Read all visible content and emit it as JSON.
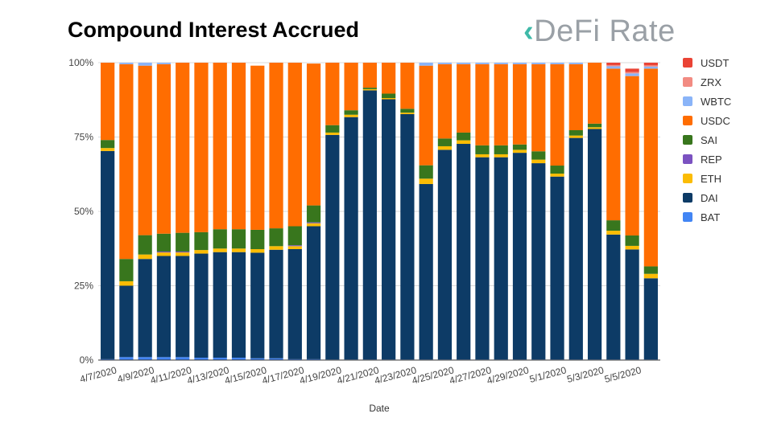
{
  "title": "Compound Interest Accrued",
  "logo_text": "DeFi Rate",
  "chart_data": {
    "type": "bar",
    "stacked": true,
    "title": "Compound Interest Accrued",
    "xlabel": "Date",
    "ylabel": "",
    "ylim": [
      0,
      100
    ],
    "yticks": [
      "0%",
      "25%",
      "50%",
      "75%",
      "100%"
    ],
    "xtick_labels": [
      "4/7/2020",
      "4/9/2020",
      "4/11/2020",
      "4/13/2020",
      "4/15/2020",
      "4/17/2020",
      "4/19/2020",
      "4/21/2020",
      "4/23/2020",
      "4/25/2020",
      "4/27/2020",
      "4/29/2020",
      "5/1/2020",
      "5/3/2020",
      "5/5/2020"
    ],
    "categories": [
      "4/7/2020",
      "4/8/2020",
      "4/9/2020",
      "4/10/2020",
      "4/11/2020",
      "4/12/2020",
      "4/13/2020",
      "4/14/2020",
      "4/15/2020",
      "4/16/2020",
      "4/17/2020",
      "4/18/2020",
      "4/19/2020",
      "4/20/2020",
      "4/21/2020",
      "4/22/2020",
      "4/23/2020",
      "4/24/2020",
      "4/25/2020",
      "4/26/2020",
      "4/27/2020",
      "4/28/2020",
      "4/29/2020",
      "4/30/2020",
      "5/1/2020",
      "5/2/2020",
      "5/3/2020",
      "5/4/2020",
      "5/5/2020",
      "5/6/2020"
    ],
    "series": [
      {
        "name": "BAT",
        "color": "#4285f4",
        "values": [
          0.3,
          1,
          1,
          1,
          1,
          0.8,
          0.8,
          0.8,
          0.6,
          0.6,
          0.3,
          0.3,
          0.2,
          0.2,
          0.2,
          0.2,
          0.2,
          0.2,
          0.2,
          0.2,
          0.2,
          0.2,
          0.2,
          0.2,
          0.2,
          0.2,
          0.2,
          0.2,
          0.2,
          0.2
        ]
      },
      {
        "name": "DAI",
        "color": "#0d3b66",
        "values": [
          70,
          24,
          33,
          34,
          34,
          35,
          35.5,
          35.5,
          35.5,
          36.5,
          37,
          44.7,
          75.5,
          81.5,
          90.5,
          87.5,
          82.5,
          59,
          70.5,
          72.5,
          68,
          68,
          69.5,
          66,
          61.5,
          74.5,
          77.5,
          42,
          37,
          27.3
        ]
      },
      {
        "name": "ETH",
        "color": "#fbbc04",
        "values": [
          1,
          1.5,
          1.5,
          1.2,
          1.2,
          1.2,
          1.2,
          1.2,
          1.2,
          1.2,
          1,
          1,
          0.8,
          0.8,
          0.4,
          0.4,
          0.5,
          1.8,
          1.2,
          1.2,
          1,
          1,
          1,
          1.2,
          1,
          0.8,
          0.6,
          1.3,
          1.2,
          1.5
        ]
      },
      {
        "name": "REP",
        "color": "#7b52c1",
        "values": [
          0,
          0,
          0,
          0.3,
          0.3,
          0,
          0,
          0,
          0,
          0,
          0.3,
          0.3,
          0,
          0,
          0,
          0,
          0,
          0,
          0,
          0,
          0,
          0,
          0,
          0,
          0,
          0,
          0,
          0,
          0,
          0
        ]
      },
      {
        "name": "SAI",
        "color": "#38761d",
        "values": [
          2.7,
          7.5,
          6.5,
          6,
          6.3,
          6,
          6.5,
          6.5,
          6.5,
          6,
          6.4,
          5.7,
          2.5,
          1.5,
          0.5,
          1.5,
          1.3,
          4.5,
          2.6,
          2.6,
          3,
          3,
          1.8,
          2.8,
          2.7,
          1.8,
          1.2,
          3.5,
          3.5,
          2.5
        ]
      },
      {
        "name": "USDC",
        "color": "#ff6d01",
        "values": [
          26,
          65.5,
          57,
          57,
          57.2,
          57,
          56,
          56,
          55.2,
          55.7,
          55,
          47.7,
          21,
          16,
          8.4,
          10.4,
          15.5,
          33.5,
          25,
          23,
          27.3,
          27.3,
          27,
          29.3,
          34.1,
          22.2,
          20.5,
          51,
          53.6,
          66.5
        ]
      },
      {
        "name": "WBTC",
        "color": "#8ab4f8",
        "values": [
          0,
          1,
          1,
          0.5,
          0,
          0,
          0,
          0,
          0,
          0,
          0,
          0,
          0,
          0,
          0,
          0,
          0,
          1,
          0.5,
          0.5,
          0.5,
          0.5,
          0.5,
          0.5,
          0.5,
          0.5,
          0,
          0.8,
          0.9,
          0.7
        ]
      },
      {
        "name": "ZRX",
        "color": "#f28b82",
        "values": [
          0,
          0,
          0,
          0,
          0,
          0,
          0,
          0,
          0,
          0,
          0,
          0,
          0,
          0,
          0,
          0,
          0,
          0,
          0,
          0,
          0,
          0,
          0,
          0,
          0,
          0,
          0,
          0.4,
          0.5,
          0.4
        ]
      },
      {
        "name": "USDT",
        "color": "#ea4335",
        "values": [
          0,
          0,
          0,
          0,
          0,
          0,
          0,
          0,
          0,
          0,
          0,
          0,
          0,
          0,
          0,
          0,
          0,
          0,
          0,
          0,
          0,
          0,
          0,
          0,
          0,
          0,
          0,
          0.8,
          1.1,
          0.9
        ]
      }
    ],
    "legend_order": [
      "USDT",
      "ZRX",
      "WBTC",
      "USDC",
      "SAI",
      "REP",
      "ETH",
      "DAI",
      "BAT"
    ],
    "legend_position": "right"
  }
}
